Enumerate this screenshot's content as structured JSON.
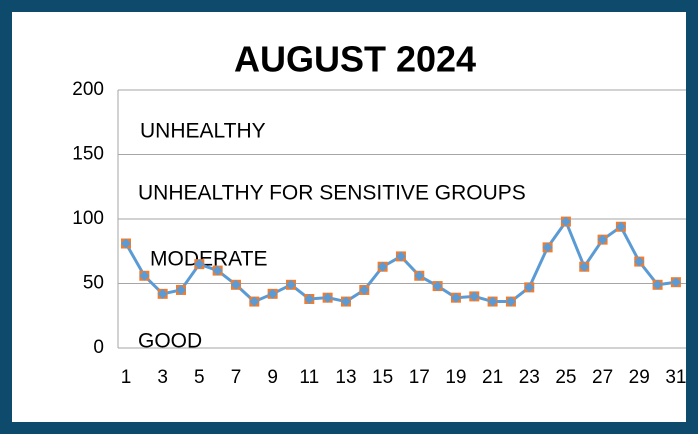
{
  "chart_data": {
    "type": "line",
    "title": "AUGUST 2024",
    "categories": [
      "1",
      null,
      "3",
      null,
      "5",
      null,
      "7",
      null,
      "9",
      null,
      "11",
      null,
      "13",
      null,
      "15",
      null,
      "17",
      null,
      "19",
      null,
      "21",
      null,
      "23",
      null,
      "25",
      null,
      "27",
      null,
      "29",
      null,
      "31"
    ],
    "series": [
      {
        "color": "#5b9bd5",
        "marker_color": "#ed7d31",
        "values": [
          81,
          56,
          42,
          45,
          65,
          60,
          49,
          36,
          42,
          49,
          38,
          39,
          36,
          45,
          63,
          71,
          56,
          48,
          39,
          40,
          36,
          36,
          47,
          78,
          98,
          63,
          84,
          94,
          67,
          49,
          51
        ]
      }
    ],
    "ylim": [
      0,
      200
    ],
    "yticks": [
      0,
      50,
      100,
      150,
      200
    ],
    "grid": true,
    "annotations": [
      "UNHEALTHY",
      "UNHEALTHY FOR SENSITIVE GROUPS",
      "MODERATE",
      "GOOD"
    ]
  }
}
